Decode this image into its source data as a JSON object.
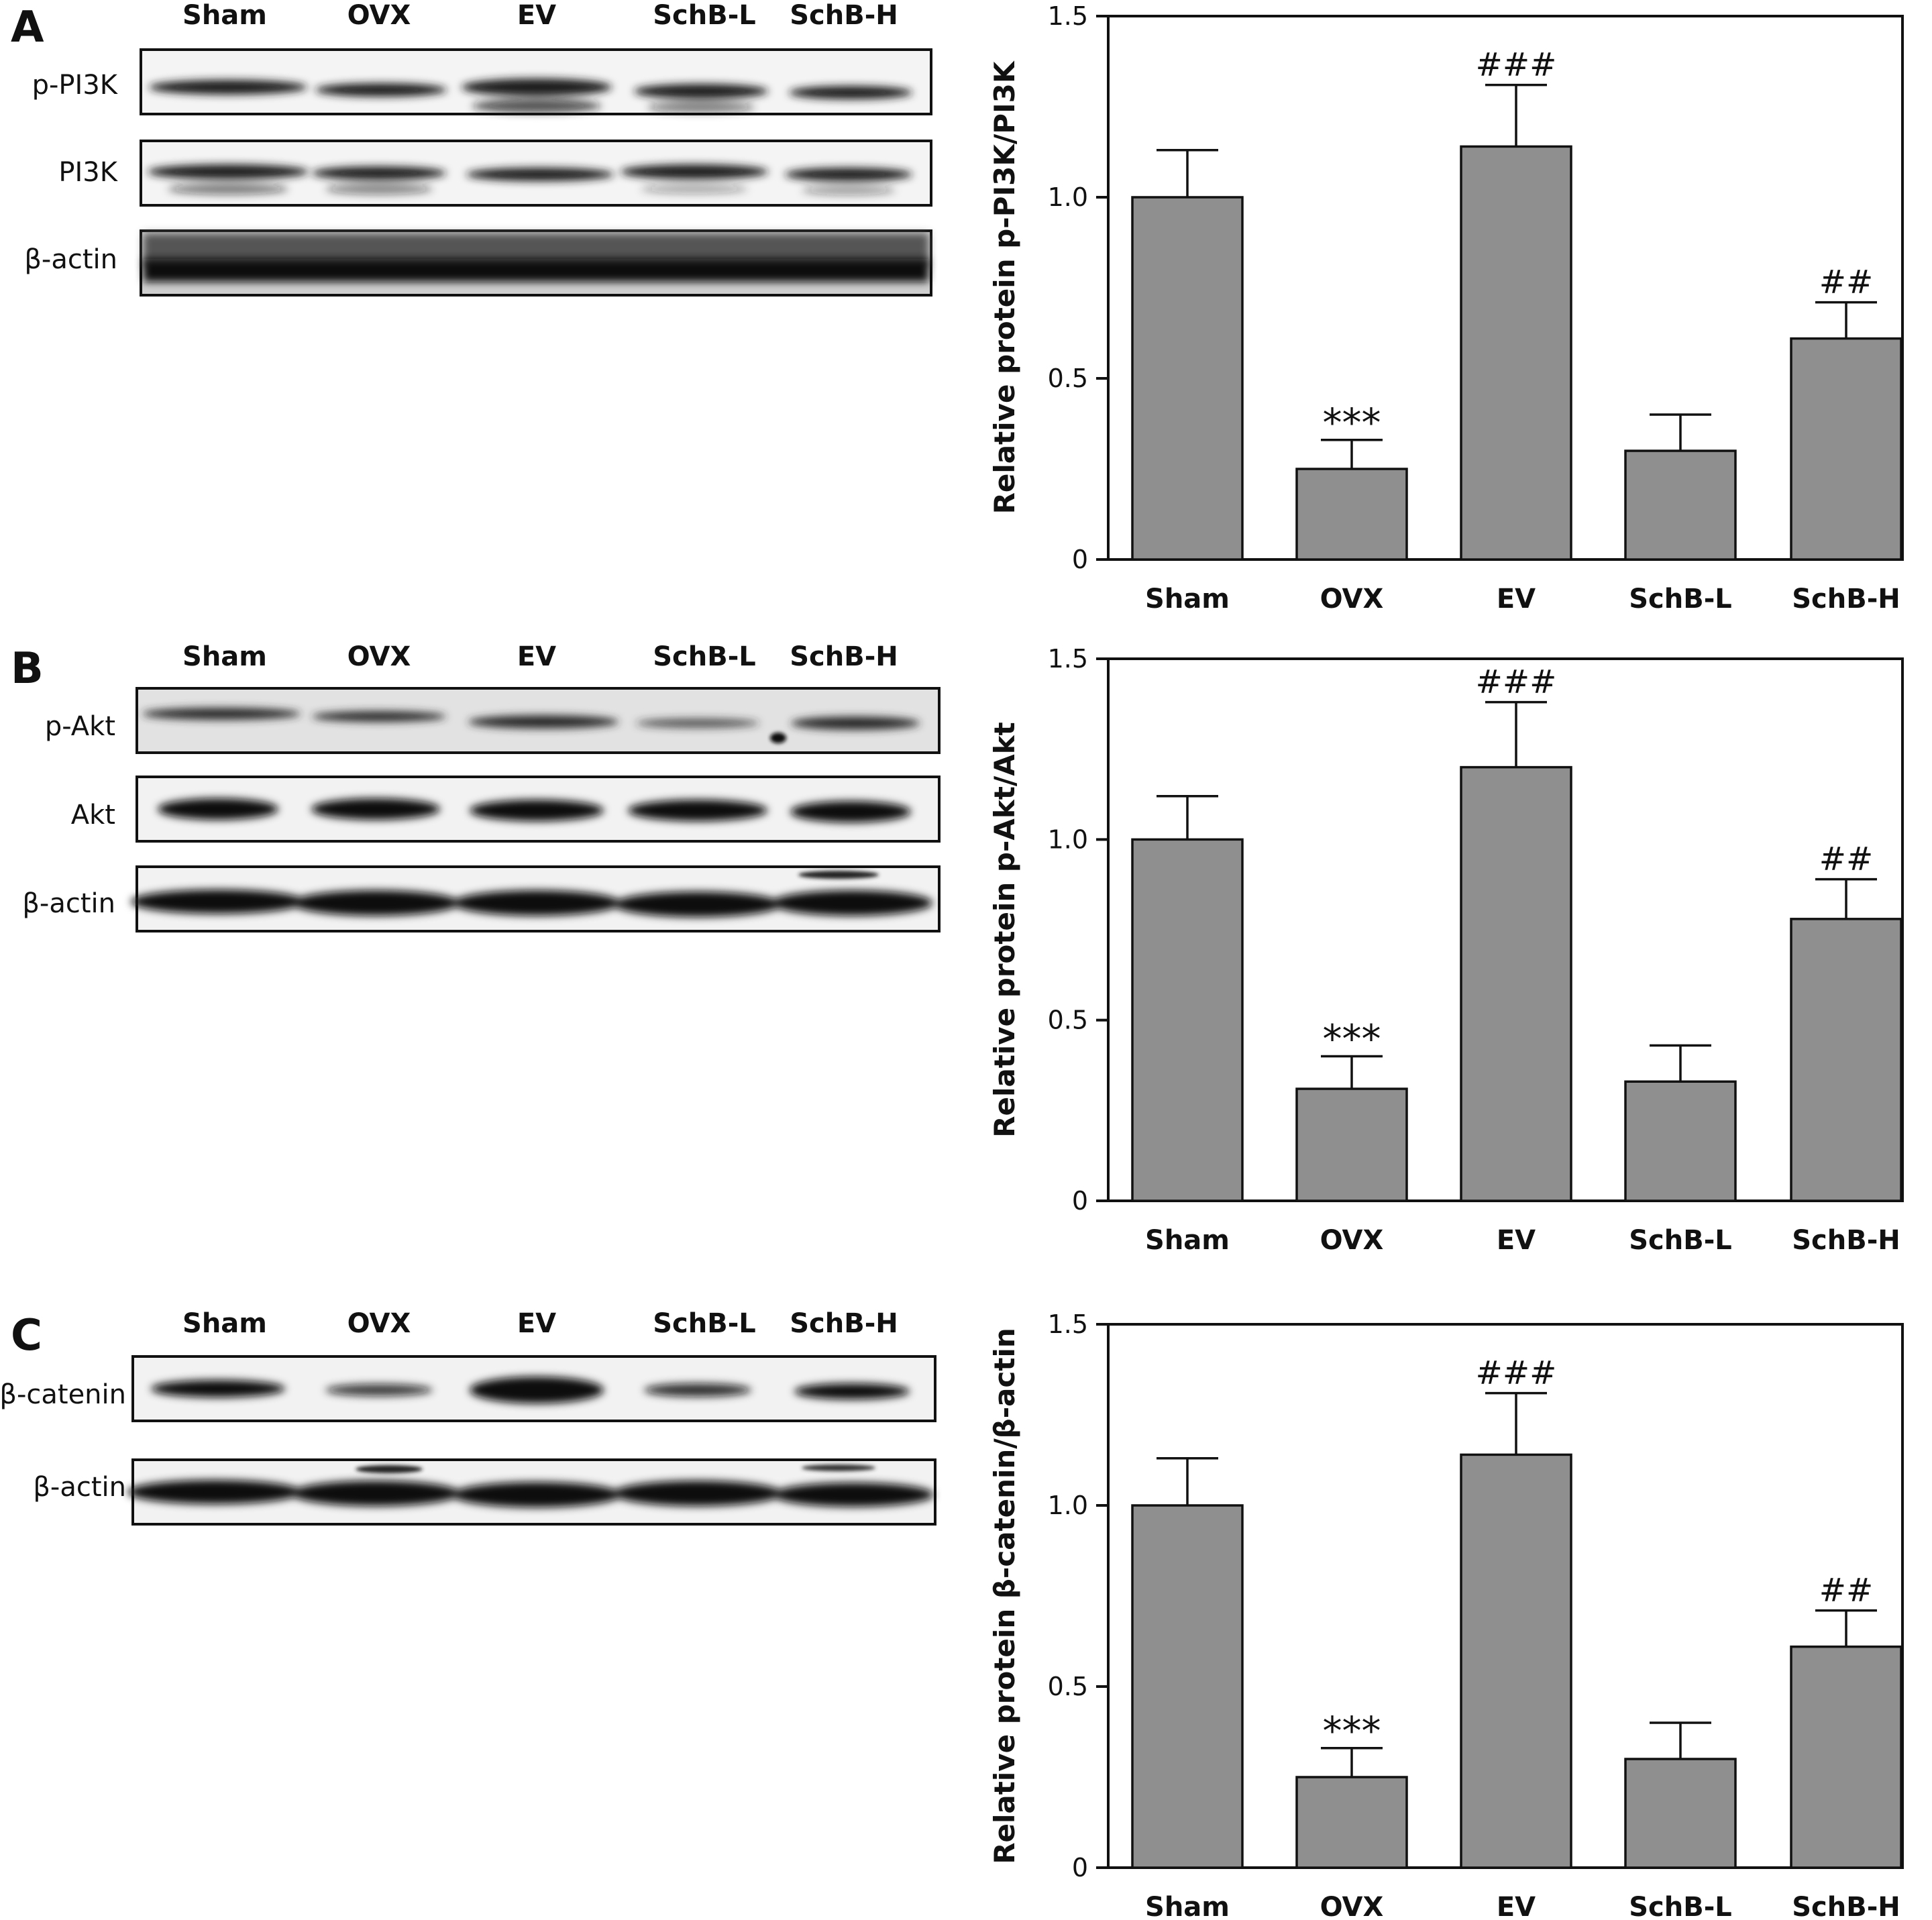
{
  "categories": [
    "Sham",
    "OVX",
    "EV",
    "SchB-L",
    "SchB-H"
  ],
  "panels": [
    {
      "letter": "A",
      "blot_rows": [
        "p-PI3K",
        "PI3K",
        "β-actin"
      ]
    },
    {
      "letter": "B",
      "blot_rows": [
        "p-Akt",
        "Akt",
        "β-actin"
      ]
    },
    {
      "letter": "C",
      "blot_rows": [
        "β-catenin",
        "β-actin"
      ]
    }
  ],
  "colors": {
    "bar": "#8f8f8f",
    "bar_stroke": "#111111",
    "band": "#111111"
  },
  "chart_data": [
    {
      "type": "bar",
      "categories": [
        "Sham",
        "OVX",
        "EV",
        "SchB-L",
        "SchB-H"
      ],
      "values": [
        1.0,
        0.25,
        1.14,
        0.3,
        0.61
      ],
      "errors": [
        0.13,
        0.08,
        0.17,
        0.1,
        0.1
      ],
      "annotations": [
        "",
        "***",
        "###",
        "",
        "##"
      ],
      "ylabel": "Relative protein p-PI3K/PI3K",
      "xlabel": "",
      "ylim": [
        0,
        1.5
      ],
      "yticks": [
        0,
        0.5,
        1.0,
        1.5
      ],
      "ytick_labels": [
        "0",
        "0.5",
        "1.0",
        "1.5"
      ]
    },
    {
      "type": "bar",
      "categories": [
        "Sham",
        "OVX",
        "EV",
        "SchB-L",
        "SchB-H"
      ],
      "values": [
        1.0,
        0.31,
        1.2,
        0.33,
        0.78
      ],
      "errors": [
        0.12,
        0.09,
        0.18,
        0.1,
        0.11
      ],
      "annotations": [
        "",
        "***",
        "###",
        "",
        "##"
      ],
      "ylabel": "Relative protein p-Akt/Akt",
      "xlabel": "",
      "ylim": [
        0,
        1.5
      ],
      "yticks": [
        0,
        0.5,
        1.0,
        1.5
      ],
      "ytick_labels": [
        "0",
        "0.5",
        "1.0",
        "1.5"
      ]
    },
    {
      "type": "bar",
      "categories": [
        "Sham",
        "OVX",
        "EV",
        "SchB-L",
        "SchB-H"
      ],
      "values": [
        1.0,
        0.25,
        1.14,
        0.3,
        0.61
      ],
      "errors": [
        0.13,
        0.08,
        0.17,
        0.1,
        0.1
      ],
      "annotations": [
        "",
        "***",
        "###",
        "",
        "##"
      ],
      "ylabel": "Relative protein β-catenin/β-actin",
      "xlabel": "",
      "ylim": [
        0,
        1.5
      ],
      "yticks": [
        0,
        0.5,
        1.0,
        1.5
      ],
      "ytick_labels": [
        "0",
        "0.5",
        "1.0",
        "1.5"
      ]
    }
  ]
}
